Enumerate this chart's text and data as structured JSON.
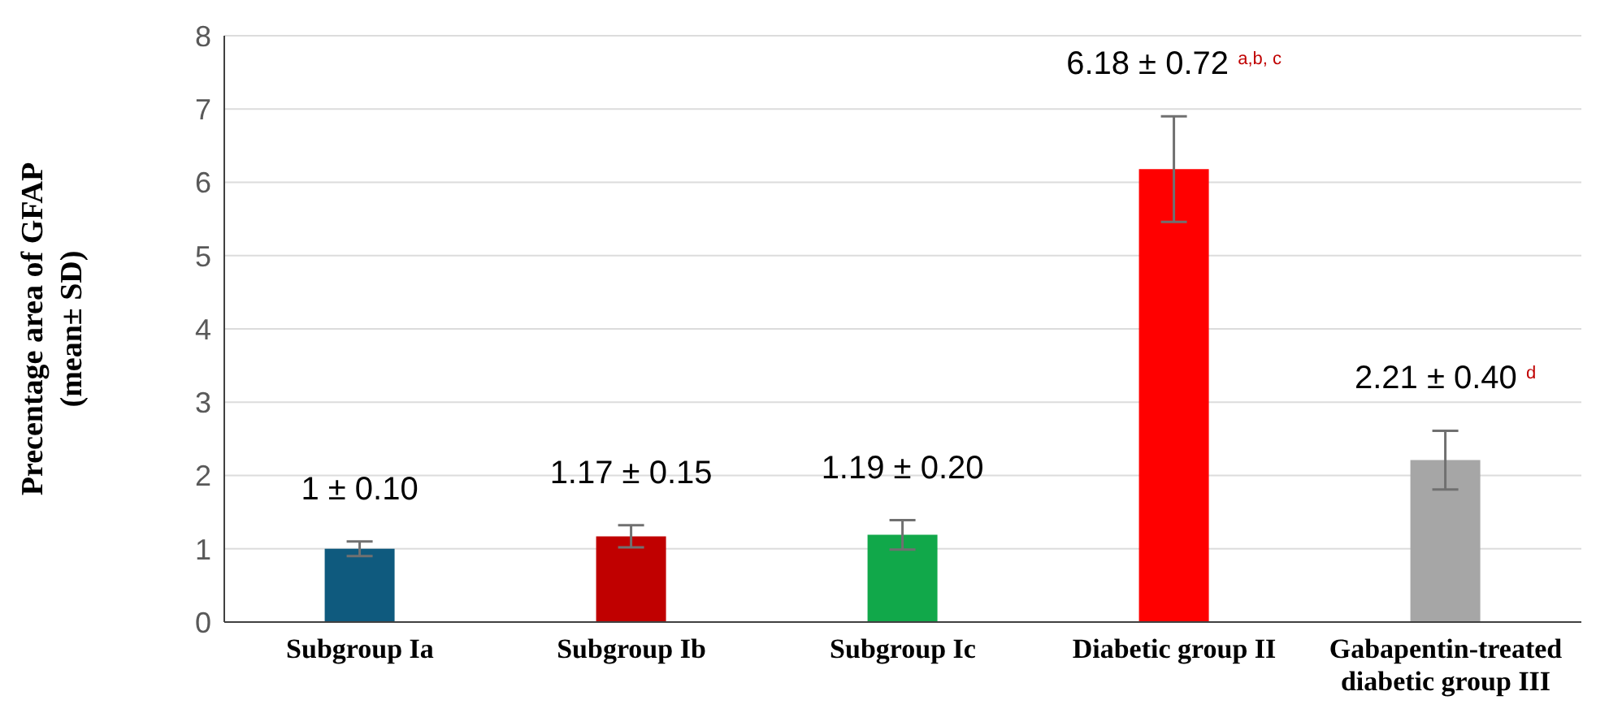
{
  "chart_data": {
    "type": "bar",
    "ylabel": "Precentage area of GFAP (mean± SD)",
    "categories": [
      "Subgroup Ia",
      "Subgroup Ib",
      "Subgroup Ic",
      "Diabetic group II",
      "Gabapentin-treated diabetic group III"
    ],
    "values": [
      1,
      1.17,
      1.19,
      6.18,
      2.21
    ],
    "errors": [
      0.1,
      0.15,
      0.2,
      0.72,
      0.4
    ],
    "colors": [
      "#0f5a7e",
      "#c00000",
      "#11a84a",
      "#ff0000",
      "#a6a6a6"
    ],
    "value_labels": [
      "1 ± 0.10",
      "1.17 ± 0.15",
      "1.19 ± 0.20",
      "6.18 ± 0.72 $^{a,b, c}$",
      "2.21 ± 0.40 $^{d}$"
    ],
    "ylim": [
      0,
      8
    ],
    "yticks": [
      0,
      1,
      2,
      3,
      4,
      5,
      6,
      7,
      8
    ],
    "grid": "y",
    "legend": false
  }
}
